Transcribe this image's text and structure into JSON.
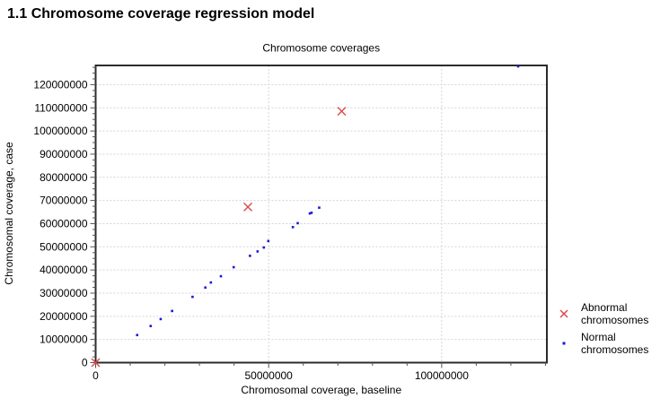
{
  "page": {
    "heading": "1.1 Chromosome coverage regression model"
  },
  "chart_data": {
    "type": "scatter",
    "title": "Chromosome coverages",
    "xlabel": "Chromosomal coverage, baseline",
    "ylabel": "Chromosomal coverage, case",
    "xlim": [
      0,
      130400000
    ],
    "ylim": [
      0,
      128300000
    ],
    "grid": "major-dashed",
    "grid_color": "#d4d4d4",
    "axis_color": "#2b2b2b",
    "tick_color": "#555555",
    "legend_position": "right-outside",
    "x_ticks": [
      {
        "value": 0,
        "label": "0"
      },
      {
        "value": 50000000,
        "label": "50000000"
      },
      {
        "value": 100000000,
        "label": "100000000"
      }
    ],
    "y_ticks": [
      {
        "value": 0,
        "label": "0"
      },
      {
        "value": 10000000,
        "label": "10000000"
      },
      {
        "value": 20000000,
        "label": "20000000"
      },
      {
        "value": 30000000,
        "label": "30000000"
      },
      {
        "value": 40000000,
        "label": "40000000"
      },
      {
        "value": 50000000,
        "label": "50000000"
      },
      {
        "value": 60000000,
        "label": "60000000"
      },
      {
        "value": 70000000,
        "label": "70000000"
      },
      {
        "value": 80000000,
        "label": "80000000"
      },
      {
        "value": 90000000,
        "label": "90000000"
      },
      {
        "value": 100000000,
        "label": "100000000"
      },
      {
        "value": 110000000,
        "label": "110000000"
      },
      {
        "value": 120000000,
        "label": "120000000"
      }
    ],
    "x_minor_step": 10000000,
    "x_major_step": 50000000,
    "y_minor_step": 2500000,
    "y_major_step": 10000000,
    "series": [
      {
        "name": "Abnormal chromosomes",
        "marker": "x",
        "color": "#dc4a4a",
        "points": [
          [
            0,
            0
          ],
          [
            44000000,
            67200000
          ],
          [
            71100000,
            108500000
          ]
        ]
      },
      {
        "name": "Normal chromosomes",
        "marker": "dot",
        "color": "#1a1ad6",
        "points": [
          [
            12000000,
            11900000
          ],
          [
            15900000,
            15800000
          ],
          [
            18800000,
            18800000
          ],
          [
            22100000,
            22300000
          ],
          [
            28000000,
            28400000
          ],
          [
            31700000,
            32400000
          ],
          [
            33300000,
            34600000
          ],
          [
            36200000,
            37300000
          ],
          [
            39900000,
            41200000
          ],
          [
            44600000,
            46100000
          ],
          [
            46800000,
            48000000
          ],
          [
            48600000,
            49700000
          ],
          [
            49900000,
            52500000
          ],
          [
            57000000,
            58500000
          ],
          [
            58400000,
            60200000
          ],
          [
            61900000,
            64400000
          ],
          [
            62400000,
            64700000
          ],
          [
            64600000,
            66900000
          ],
          [
            122100000,
            127900000
          ]
        ]
      }
    ]
  }
}
